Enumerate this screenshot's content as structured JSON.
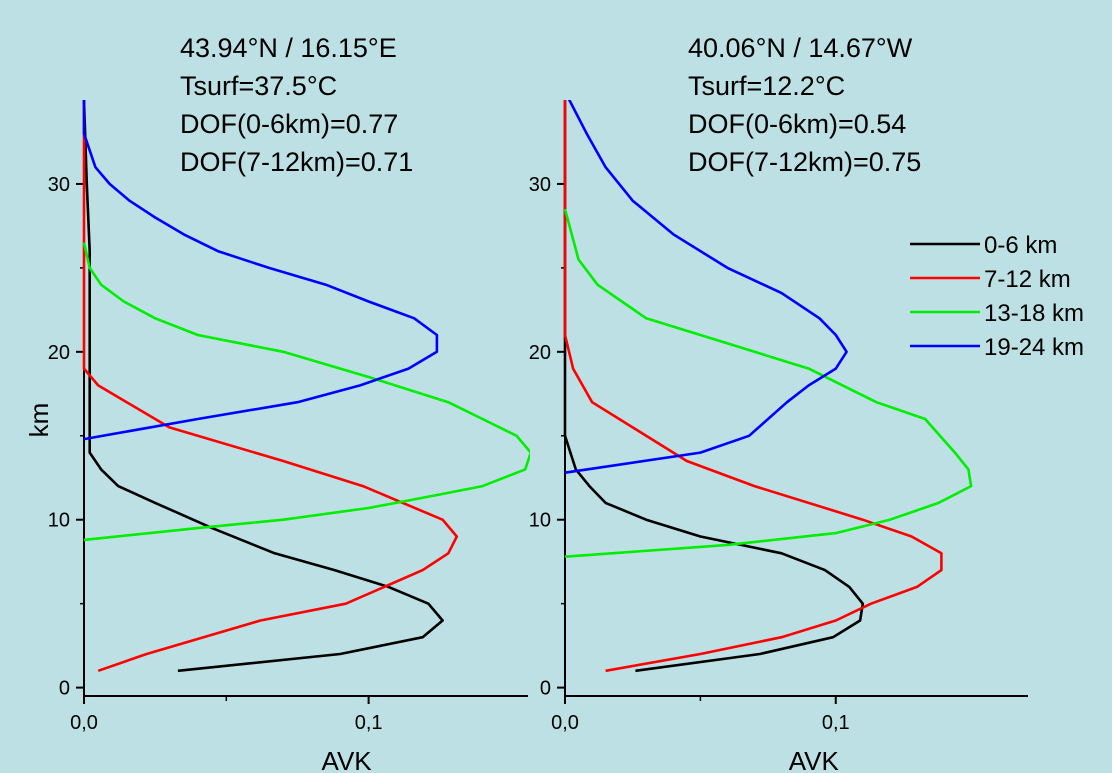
{
  "chart_data": [
    {
      "type": "line",
      "xlabel": "AVK",
      "ylabel": "km",
      "xlim": [
        0,
        0.156
      ],
      "ylim": [
        -0.5,
        35
      ],
      "x_ticks": [
        "0,0",
        "0,1"
      ],
      "y_ticks": [
        "0",
        "10",
        "20",
        "30"
      ],
      "annotations": [
        "43.94°N / 16.15°E",
        "Tsurf=37.5°C",
        "DOF(0-6km)=0.77",
        "DOF(7-12km)=0.71"
      ],
      "series": [
        {
          "name": "0-6 km",
          "color": "#000000",
          "points": [
            [
              0.033,
              1
            ],
            [
              0.09,
              2
            ],
            [
              0.119,
              3
            ],
            [
              0.126,
              4
            ],
            [
              0.121,
              5
            ],
            [
              0.107,
              6
            ],
            [
              0.088,
              7
            ],
            [
              0.067,
              8
            ],
            [
              0.045,
              9.5
            ],
            [
              0.025,
              11
            ],
            [
              0.012,
              12
            ],
            [
              0.006,
              13
            ],
            [
              0.002,
              14
            ],
            [
              0.002,
              20
            ],
            [
              0.002,
              26
            ],
            [
              0.001,
              30
            ],
            [
              0.0,
              35
            ]
          ]
        },
        {
          "name": "7-12 km",
          "color": "#ff0000",
          "points": [
            [
              0.005,
              1
            ],
            [
              0.022,
              2
            ],
            [
              0.062,
              4
            ],
            [
              0.092,
              5
            ],
            [
              0.119,
              7
            ],
            [
              0.128,
              8
            ],
            [
              0.131,
              9
            ],
            [
              0.126,
              10
            ],
            [
              0.112,
              11
            ],
            [
              0.098,
              12
            ],
            [
              0.07,
              13.5
            ],
            [
              0.03,
              15.5
            ],
            [
              0.015,
              17
            ],
            [
              0.005,
              18
            ],
            [
              0.0,
              19
            ],
            [
              0.0,
              25
            ],
            [
              0.0,
              35
            ]
          ]
        },
        {
          "name": "13-18 km",
          "color": "#00ee00",
          "points": [
            [
              0.0,
              8.8
            ],
            [
              0.04,
              9.5
            ],
            [
              0.07,
              10
            ],
            [
              0.1,
              10.7
            ],
            [
              0.125,
              11.5
            ],
            [
              0.14,
              12
            ],
            [
              0.155,
              13
            ],
            [
              0.157,
              14
            ],
            [
              0.152,
              15
            ],
            [
              0.14,
              16
            ],
            [
              0.128,
              17
            ],
            [
              0.1,
              18.5
            ],
            [
              0.07,
              20
            ],
            [
              0.04,
              21
            ],
            [
              0.025,
              22
            ],
            [
              0.014,
              23
            ],
            [
              0.006,
              24
            ],
            [
              0.002,
              25
            ],
            [
              0.0,
              26.5
            ]
          ]
        },
        {
          "name": "19-24 km",
          "color": "#0000ff",
          "points": [
            [
              0.0,
              14.8
            ],
            [
              0.04,
              16
            ],
            [
              0.075,
              17
            ],
            [
              0.097,
              18
            ],
            [
              0.114,
              19
            ],
            [
              0.124,
              20
            ],
            [
              0.124,
              21
            ],
            [
              0.116,
              22
            ],
            [
              0.1,
              23
            ],
            [
              0.085,
              24
            ],
            [
              0.065,
              25
            ],
            [
              0.047,
              26
            ],
            [
              0.035,
              27
            ],
            [
              0.025,
              28
            ],
            [
              0.016,
              29
            ],
            [
              0.009,
              30
            ],
            [
              0.004,
              31
            ],
            [
              0.0,
              33
            ],
            [
              0.0,
              35
            ]
          ]
        }
      ]
    },
    {
      "type": "line",
      "xlabel": "AVK",
      "ylabel": "",
      "xlim": [
        0,
        0.171
      ],
      "ylim": [
        -0.5,
        35
      ],
      "x_ticks": [
        "0,0",
        "0,1"
      ],
      "y_ticks": [
        "0",
        "10",
        "20",
        "30"
      ],
      "annotations": [
        "40.06°N / 14.67°W",
        "Tsurf=12.2°C",
        "DOF(0-6km)=0.54",
        "DOF(7-12km)=0.75"
      ],
      "series": [
        {
          "name": "0-6 km",
          "color": "#000000",
          "points": [
            [
              0.026,
              1
            ],
            [
              0.072,
              2
            ],
            [
              0.099,
              3
            ],
            [
              0.109,
              4
            ],
            [
              0.11,
              5
            ],
            [
              0.105,
              6
            ],
            [
              0.096,
              7
            ],
            [
              0.08,
              8
            ],
            [
              0.05,
              9
            ],
            [
              0.03,
              10
            ],
            [
              0.015,
              11
            ],
            [
              0.009,
              12
            ],
            [
              0.004,
              13
            ],
            [
              0.002,
              14
            ],
            [
              0.0,
              15
            ],
            [
              0.0,
              20
            ],
            [
              0.0,
              25
            ],
            [
              0.0,
              35
            ]
          ]
        },
        {
          "name": "7-12 km",
          "color": "#ff0000",
          "points": [
            [
              0.015,
              1
            ],
            [
              0.05,
              2
            ],
            [
              0.08,
              3
            ],
            [
              0.1,
              4
            ],
            [
              0.113,
              5
            ],
            [
              0.13,
              6
            ],
            [
              0.139,
              7
            ],
            [
              0.139,
              8
            ],
            [
              0.128,
              9
            ],
            [
              0.11,
              10
            ],
            [
              0.07,
              12
            ],
            [
              0.045,
              13.5
            ],
            [
              0.025,
              15.5
            ],
            [
              0.01,
              17
            ],
            [
              0.003,
              19
            ],
            [
              0.0,
              21
            ],
            [
              0.0,
              35
            ]
          ]
        },
        {
          "name": "13-18 km",
          "color": "#00ee00",
          "points": [
            [
              0.0,
              7.8
            ],
            [
              0.06,
              8.5
            ],
            [
              0.1,
              9.2
            ],
            [
              0.12,
              10
            ],
            [
              0.138,
              11
            ],
            [
              0.15,
              12
            ],
            [
              0.149,
              13
            ],
            [
              0.144,
              14
            ],
            [
              0.133,
              16
            ],
            [
              0.115,
              17
            ],
            [
              0.09,
              19
            ],
            [
              0.06,
              20.5
            ],
            [
              0.03,
              22
            ],
            [
              0.012,
              24
            ],
            [
              0.005,
              25.5
            ],
            [
              0.0,
              28.5
            ]
          ]
        },
        {
          "name": "19-24 km",
          "color": "#0000ff",
          "points": [
            [
              0.0,
              12.8
            ],
            [
              0.05,
              14
            ],
            [
              0.068,
              15
            ],
            [
              0.082,
              17
            ],
            [
              0.09,
              18
            ],
            [
              0.1,
              19
            ],
            [
              0.104,
              20
            ],
            [
              0.1,
              21
            ],
            [
              0.094,
              22
            ],
            [
              0.08,
              23.5
            ],
            [
              0.06,
              25
            ],
            [
              0.04,
              27
            ],
            [
              0.025,
              29
            ],
            [
              0.015,
              31
            ],
            [
              0.008,
              33
            ],
            [
              0.0,
              35.5
            ]
          ]
        }
      ]
    }
  ],
  "legend": {
    "items": [
      {
        "label": "0-6 km",
        "color": "#000000"
      },
      {
        "label": "7-12 km",
        "color": "#ff0000"
      },
      {
        "label": "13-18 km",
        "color": "#00ee00"
      },
      {
        "label": "19-24 km",
        "color": "#0000ff"
      }
    ]
  }
}
